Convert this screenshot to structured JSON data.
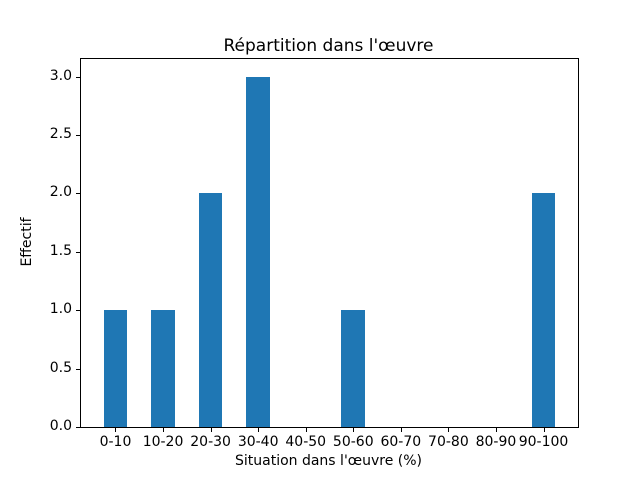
{
  "chart_data": {
    "type": "bar",
    "title": "Répartition dans l'œuvre",
    "xlabel": "Situation dans l'œuvre (%)",
    "ylabel": "Effectif",
    "categories": [
      "0-10",
      "10-20",
      "20-30",
      "30-40",
      "40-50",
      "50-60",
      "60-70",
      "70-80",
      "80-90",
      "90-100"
    ],
    "values": [
      1,
      1,
      2,
      3,
      0,
      1,
      0,
      0,
      0,
      2
    ],
    "yticks": [
      0.0,
      0.5,
      1.0,
      1.5,
      2.0,
      2.5,
      3.0
    ],
    "ylim": [
      0,
      3.15
    ],
    "bar_color": "#1f77b4",
    "bar_width_units": 0.5,
    "x_margin_units": 0.725,
    "grid": false,
    "legend_position": "none"
  }
}
